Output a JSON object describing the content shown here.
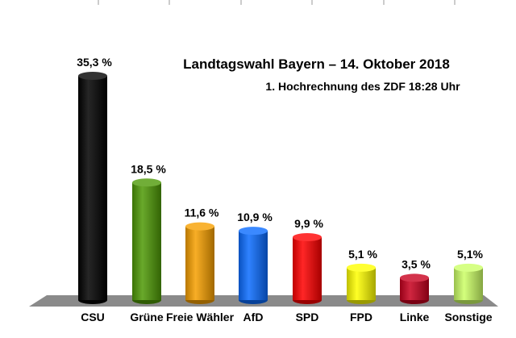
{
  "chart_data": {
    "type": "bar",
    "title": "Landtagswahl Bayern – 14. Oktober 2018",
    "subtitle": "1. Hochrechnung des ZDF 18:28 Uhr",
    "categories": [
      "CSU",
      "Grüne",
      "Freie Wähler",
      "AfD",
      "SPD",
      "FPD",
      "Linke",
      "Sonstige"
    ],
    "values": [
      35.3,
      18.5,
      11.6,
      10.9,
      9.9,
      5.1,
      3.5,
      5.1
    ],
    "value_labels": [
      "35,3  %",
      "18,5 %",
      "11,6 %",
      "10,9 %",
      "9,9 %",
      "5,1 %",
      "3,5 %",
      "5,1%"
    ],
    "colors": [
      "#000000",
      "#4e9a06",
      "#f7a000",
      "#0a6cff",
      "#ff0000",
      "#ffff00",
      "#c8001e",
      "#ccff66"
    ],
    "ylim": [
      0,
      35.3
    ],
    "grid": false,
    "legend": "none",
    "xlabel": "",
    "ylabel": ""
  }
}
